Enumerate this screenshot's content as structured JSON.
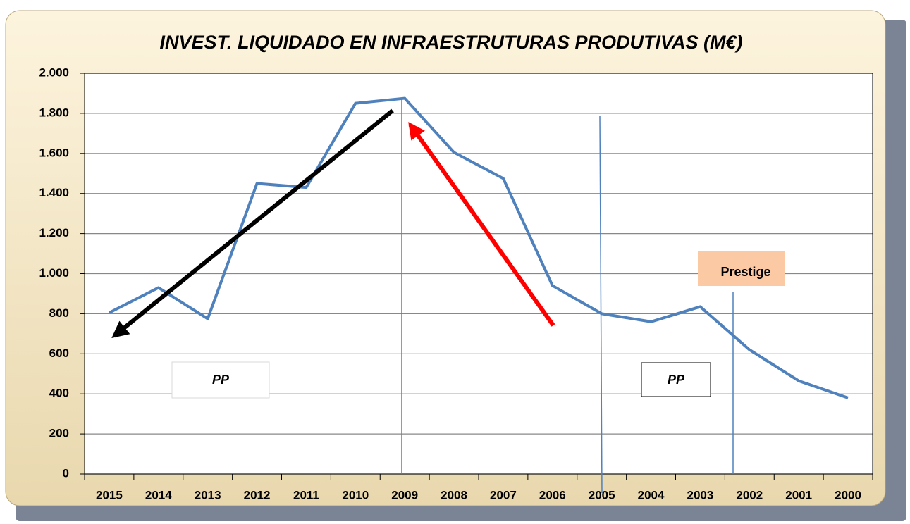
{
  "chart_data": {
    "type": "line",
    "title": "INVEST. LIQUIDADO EN  INFRAESTRUTURAS PRODUTIVAS (M€)",
    "categories": [
      "2015",
      "2014",
      "2013",
      "2012",
      "2011",
      "2010",
      "2009",
      "2008",
      "2007",
      "2006",
      "2005",
      "2004",
      "2003",
      "2002",
      "2001",
      "2000"
    ],
    "series": [
      {
        "color": "#4f81bd",
        "values": [
          805,
          930,
          775,
          1450,
          1430,
          1850,
          1875,
          1605,
          1475,
          940,
          800,
          760,
          835,
          620,
          465,
          380
        ]
      }
    ],
    "ylim": [
      0,
      2000
    ],
    "yticks": [
      0,
      {
        "value": 200,
        "label": "200"
      },
      {
        "value": 400,
        "label": "400"
      },
      {
        "value": 600,
        "label": "600"
      },
      {
        "value": 800,
        "label": "800"
      },
      {
        "value": 1000,
        "label": "1.000"
      },
      {
        "value": 1200,
        "label": "1.200"
      },
      {
        "value": 1400,
        "label": "1.400"
      },
      {
        "value": 1600,
        "label": "1.600"
      },
      {
        "value": 1800,
        "label": "1.800"
      },
      {
        "value": 2000,
        "label": "2.000"
      }
    ],
    "grid": true,
    "annotations": [
      "PP",
      "PP",
      "Prestige"
    ]
  }
}
